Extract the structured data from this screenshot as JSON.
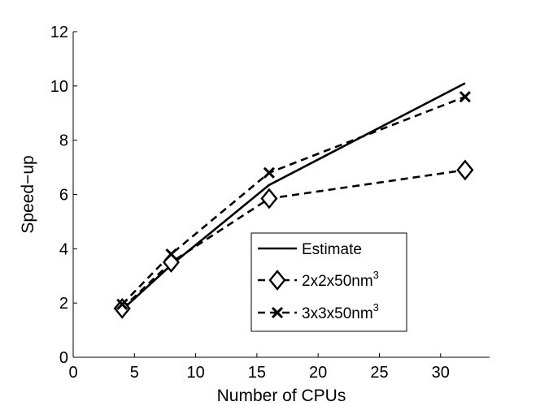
{
  "chart_data": {
    "type": "line",
    "title": "",
    "xlabel": "Number of CPUs",
    "ylabel": "Speed−up",
    "xlim": [
      0,
      34
    ],
    "ylim": [
      0,
      12
    ],
    "xticks": [
      0,
      5,
      10,
      15,
      20,
      25,
      30
    ],
    "yticks": [
      0,
      2,
      4,
      6,
      8,
      10,
      12
    ],
    "grid": false,
    "legend_position": "bottom-right",
    "series": [
      {
        "name": "Estimate",
        "line_style": "solid",
        "marker": "none",
        "color": "#000000",
        "x": [
          4,
          8,
          16,
          32
        ],
        "y": [
          1.75,
          3.4,
          6.35,
          10.1
        ]
      },
      {
        "name": "2x2x50nm",
        "name_superscript": "3",
        "line_style": "dashed",
        "marker": "diamond",
        "color": "#000000",
        "x": [
          4,
          8,
          16,
          32
        ],
        "y": [
          1.8,
          3.5,
          5.85,
          6.9
        ]
      },
      {
        "name": "3x3x50nm",
        "name_superscript": "3",
        "line_style": "dashed",
        "marker": "x",
        "color": "#000000",
        "x": [
          4,
          8,
          16,
          32
        ],
        "y": [
          1.95,
          3.8,
          6.8,
          9.6
        ]
      }
    ]
  }
}
